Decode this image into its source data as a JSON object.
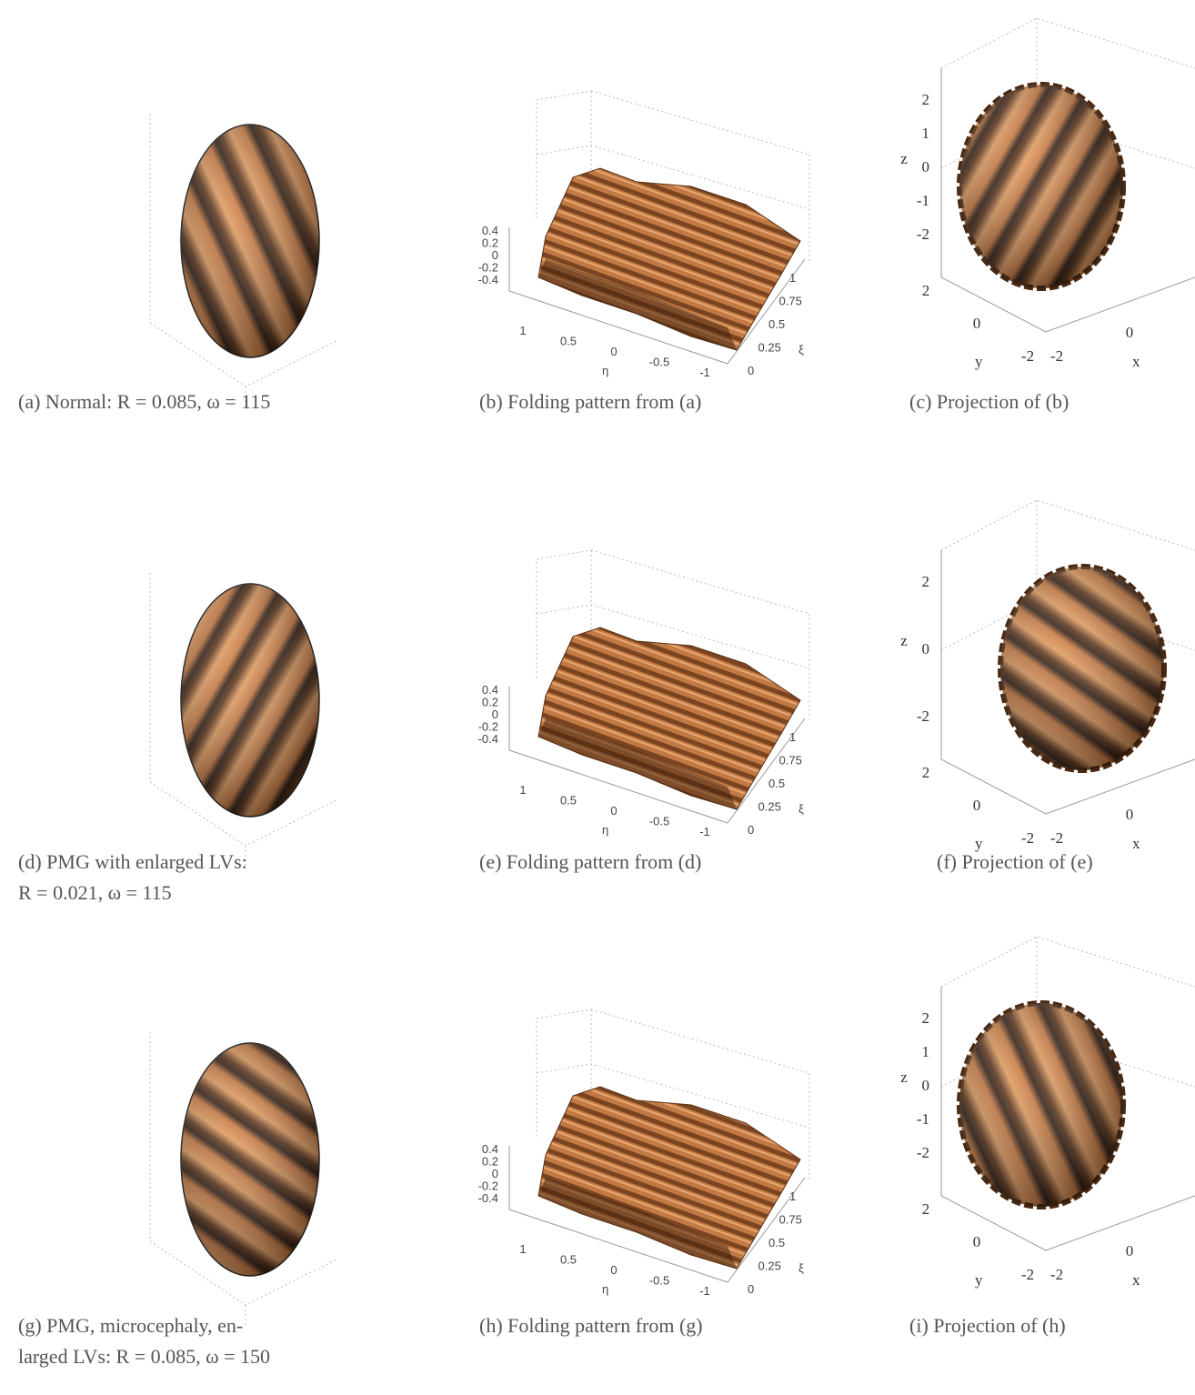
{
  "panels": [
    {
      "caption": [
        "(a) Normal: R = 0.085, ω = 115"
      ]
    },
    {
      "caption": [
        "(b) Folding pattern from (a)"
      ],
      "axes": {
        "z_ticks": [
          "0.4",
          "0.2",
          "0",
          "-0.2",
          "-0.4"
        ],
        "eta_ticks": [
          "1",
          "0.5",
          "0",
          "-0.5",
          "-1"
        ],
        "eta_label": "η",
        "xi_ticks": [
          "0",
          "0.25",
          "0.5",
          "0.75",
          "1"
        ],
        "xi_label": "ξ"
      }
    },
    {
      "caption": [
        "(c) Projection of (b)"
      ],
      "axes": {
        "z_label": "z",
        "z_ticks": [
          "2",
          "1",
          "0",
          "-1",
          "-2"
        ],
        "y_label": "y",
        "y_ticks": [
          "2",
          "0",
          "-2"
        ],
        "x_label": "x",
        "x_ticks": [
          "-2",
          "0"
        ]
      }
    },
    {
      "caption": [
        "(d) PMG with enlarged LVs:",
        "R = 0.021, ω = 115"
      ]
    },
    {
      "caption": [
        "(e) Folding pattern from (d)"
      ],
      "axes": {
        "z_ticks": [
          "0.4",
          "0.2",
          "0",
          "-0.2",
          "-0.4"
        ],
        "eta_ticks": [
          "1",
          "0.5",
          "0",
          "-0.5",
          "-1"
        ],
        "eta_label": "η",
        "xi_ticks": [
          "0",
          "0.25",
          "0.5",
          "0.75",
          "1"
        ],
        "xi_label": "ξ"
      }
    },
    {
      "caption": [
        "(f) Projection of (e)"
      ],
      "axes": {
        "z_label": "z",
        "z_ticks": [
          "2",
          "0",
          "-2"
        ],
        "y_label": "y",
        "y_ticks": [
          "2",
          "0",
          "-2"
        ],
        "x_label": "x",
        "x_ticks": [
          "-2",
          "0"
        ]
      }
    },
    {
      "caption": [
        "(g) PMG, microcephaly, en-",
        "larged LVs: R = 0.085, ω = 150"
      ]
    },
    {
      "caption": [
        "(h) Folding pattern from (g)"
      ],
      "axes": {
        "z_ticks": [
          "0.4",
          "0.2",
          "0",
          "-0.2",
          "-0.4"
        ],
        "eta_ticks": [
          "1",
          "0.5",
          "0",
          "-0.5",
          "-1"
        ],
        "eta_label": "η",
        "xi_ticks": [
          "0",
          "0.25",
          "0.5",
          "0.75",
          "1"
        ],
        "xi_label": "ξ"
      }
    },
    {
      "caption": [
        "(i) Projection of (h)"
      ],
      "axes": {
        "z_label": "z",
        "z_ticks": [
          "2",
          "1",
          "0",
          "-1",
          "-2"
        ],
        "y_label": "y",
        "y_ticks": [
          "2",
          "0",
          "-2"
        ],
        "x_label": "x",
        "x_ticks": [
          "-2",
          "0"
        ]
      }
    }
  ]
}
